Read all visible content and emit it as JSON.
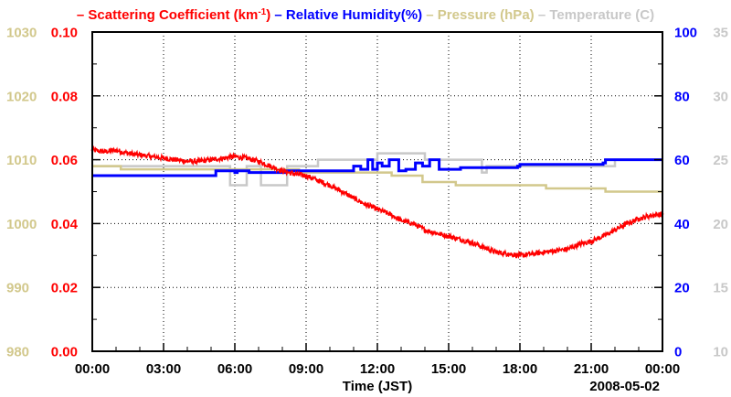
{
  "chart_data": {
    "type": "line",
    "date_label": "2008-05-02",
    "xlabel": "Time (JST)",
    "x_ticks": [
      "00:00",
      "03:00",
      "06:00",
      "09:00",
      "12:00",
      "15:00",
      "18:00",
      "21:00",
      "00:00"
    ],
    "x_range_hours": [
      0,
      24
    ],
    "legend": [
      {
        "dash": "–",
        "name": "Scattering Coefficient (km",
        "sup": "-1",
        "tail": ")",
        "color": "#ff0000"
      },
      {
        "dash": "–",
        "name": "Relative Humidity(%)",
        "sup": "",
        "tail": "",
        "color": "#0000ff"
      },
      {
        "dash": "–",
        "name": "Pressure (hPa)",
        "sup": "",
        "tail": "",
        "color": "#d2c88c"
      },
      {
        "dash": "–",
        "name": "Temperature (C)",
        "sup": "",
        "tail": "",
        "color": "#c8c8c8"
      }
    ],
    "axes": {
      "pressure": {
        "ticks": [
          "1030",
          "1020",
          "1010",
          "1000",
          "990",
          "980"
        ],
        "range": [
          980,
          1030
        ],
        "color": "#d2c88c"
      },
      "scattering": {
        "ticks": [
          "0.10",
          "0.08",
          "0.06",
          "0.04",
          "0.02",
          "0.00"
        ],
        "range": [
          0,
          0.1
        ],
        "color": "#ff0000"
      },
      "humidity": {
        "ticks": [
          "100",
          "80",
          "60",
          "40",
          "20",
          "0"
        ],
        "range": [
          0,
          100
        ],
        "color": "#0000ff"
      },
      "temperature": {
        "ticks": [
          "35",
          "30",
          "25",
          "20",
          "15",
          "10"
        ],
        "range": [
          10,
          35
        ],
        "color": "#c8c8c8"
      }
    },
    "series": [
      {
        "name": "Scattering Coefficient",
        "axis": "scattering",
        "color": "#ff0000",
        "x": [
          0,
          0.5,
          1,
          1.5,
          2,
          2.5,
          3,
          3.5,
          4,
          4.5,
          5,
          5.5,
          6,
          6.5,
          7,
          7.5,
          8,
          8.5,
          9,
          9.5,
          10,
          10.5,
          11,
          11.5,
          12,
          12.5,
          13,
          13.5,
          14,
          14.5,
          15,
          15.5,
          16,
          16.5,
          17,
          17.5,
          18,
          18.5,
          19,
          19.5,
          20,
          20.5,
          21,
          21.5,
          22,
          22.5,
          23,
          23.5,
          24
        ],
        "values": [
          0.063,
          0.0625,
          0.063,
          0.062,
          0.0615,
          0.061,
          0.0605,
          0.06,
          0.0595,
          0.0595,
          0.06,
          0.0605,
          0.061,
          0.0605,
          0.0595,
          0.058,
          0.0565,
          0.0555,
          0.055,
          0.0535,
          0.052,
          0.05,
          0.048,
          0.046,
          0.0445,
          0.043,
          0.041,
          0.04,
          0.038,
          0.037,
          0.036,
          0.035,
          0.034,
          0.0325,
          0.031,
          0.0305,
          0.03,
          0.0305,
          0.031,
          0.0315,
          0.032,
          0.0335,
          0.0345,
          0.036,
          0.038,
          0.04,
          0.0415,
          0.0425,
          0.043
        ],
        "noise": 0.0008
      },
      {
        "name": "Relative Humidity",
        "axis": "humidity",
        "color": "#0000ff",
        "x": [
          0,
          5,
          5.2,
          6,
          6.1,
          6.6,
          8,
          8.1,
          10.8,
          11,
          11.3,
          11.6,
          11.8,
          12,
          12.2,
          12.5,
          12.9,
          13.2,
          13.6,
          13.9,
          14.2,
          14.6,
          15.5,
          17.9,
          18,
          21.5,
          21.6,
          24
        ],
        "values": [
          55,
          55,
          56.5,
          56,
          56.5,
          56,
          56,
          56.5,
          56.5,
          58,
          57,
          60,
          57,
          59,
          58,
          60,
          56.5,
          57,
          59,
          58,
          60,
          57,
          57.5,
          58,
          58.5,
          59,
          60,
          60
        ],
        "step": true
      },
      {
        "name": "Pressure",
        "axis": "pressure",
        "color": "#d2c88c",
        "x": [
          0,
          0.6,
          1.2,
          8.6,
          8.7,
          12.5,
          12.6,
          13.8,
          13.9,
          15.2,
          15.3,
          19.0,
          19.1,
          21.5,
          21.6,
          24
        ],
        "values": [
          1009,
          1009,
          1008.5,
          1008.5,
          1008,
          1008,
          1007.5,
          1007.5,
          1006.5,
          1006.5,
          1006,
          1006,
          1005.5,
          1005.5,
          1005,
          1005
        ],
        "step": true
      },
      {
        "name": "Temperature",
        "axis": "temperature",
        "color": "#c8c8c8",
        "x": [
          0,
          5,
          5.8,
          6.5,
          7.1,
          8.2,
          9.5,
          10,
          12,
          14,
          16.4,
          16.6,
          18,
          20,
          22,
          24
        ],
        "values": [
          24.5,
          24.5,
          23,
          24.5,
          23,
          24.5,
          25,
          25,
          25.5,
          25,
          24,
          24.5,
          24.5,
          24.5,
          25,
          25
        ],
        "step": true
      }
    ]
  }
}
